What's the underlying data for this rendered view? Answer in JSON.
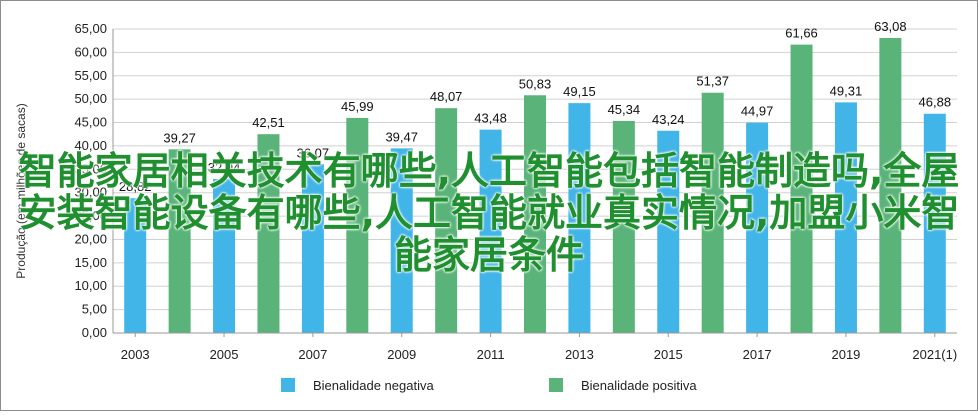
{
  "chart_data": {
    "type": "bar",
    "ylabel": "Produção (em milhões de sacas)",
    "ylim": [
      0,
      65
    ],
    "y_ticks": [
      "0,00",
      "5,00",
      "10,00",
      "15,00",
      "20,00",
      "25,00",
      "30,00",
      "35,00",
      "40,00",
      "45,00",
      "50,00",
      "55,00",
      "60,00",
      "65,00"
    ],
    "x_tick_labels": [
      "2003",
      "2005",
      "2007",
      "2009",
      "2011",
      "2013",
      "2015",
      "2017",
      "2019",
      "2021(1)"
    ],
    "categories": [
      "2003",
      "2004",
      "2005",
      "2006",
      "2007",
      "2008",
      "2009",
      "2010",
      "2011",
      "2012",
      "2013",
      "2014",
      "2015",
      "2016",
      "2017",
      "2018",
      "2019",
      "2020",
      "2021(1)"
    ],
    "series": [
      {
        "name": "Bienalidade negativa",
        "color": "#41b4e8"
      },
      {
        "name": "Bienalidade positiva",
        "color": "#5ab47a"
      }
    ],
    "values": [
      28.82,
      39.27,
      32.94,
      42.51,
      36.07,
      45.99,
      39.47,
      48.07,
      43.48,
      50.83,
      49.15,
      45.34,
      43.24,
      51.37,
      44.97,
      61.66,
      49.31,
      63.08,
      46.88
    ],
    "value_labels": [
      "28,82",
      "39,27",
      "32,94",
      "42,51",
      "36,07",
      "45,99",
      "39,47",
      "48,07",
      "43,48",
      "50,83",
      "49,15",
      "45,34",
      "43,24",
      "51,37",
      "44,97",
      "61,66",
      "49,31",
      "63,08",
      "46,88"
    ],
    "bar_series_index": [
      0,
      1,
      0,
      1,
      0,
      1,
      0,
      1,
      0,
      1,
      0,
      1,
      0,
      1,
      0,
      1,
      0,
      1,
      0
    ],
    "grid": "horizontal",
    "legend_position": "bottom"
  },
  "overlay_text": "智能家居相关技术有哪些,人工智能包括智能制造吗,全屋安装智能设备有哪些,人工智能就业真实情况,加盟小米智能家居条件"
}
